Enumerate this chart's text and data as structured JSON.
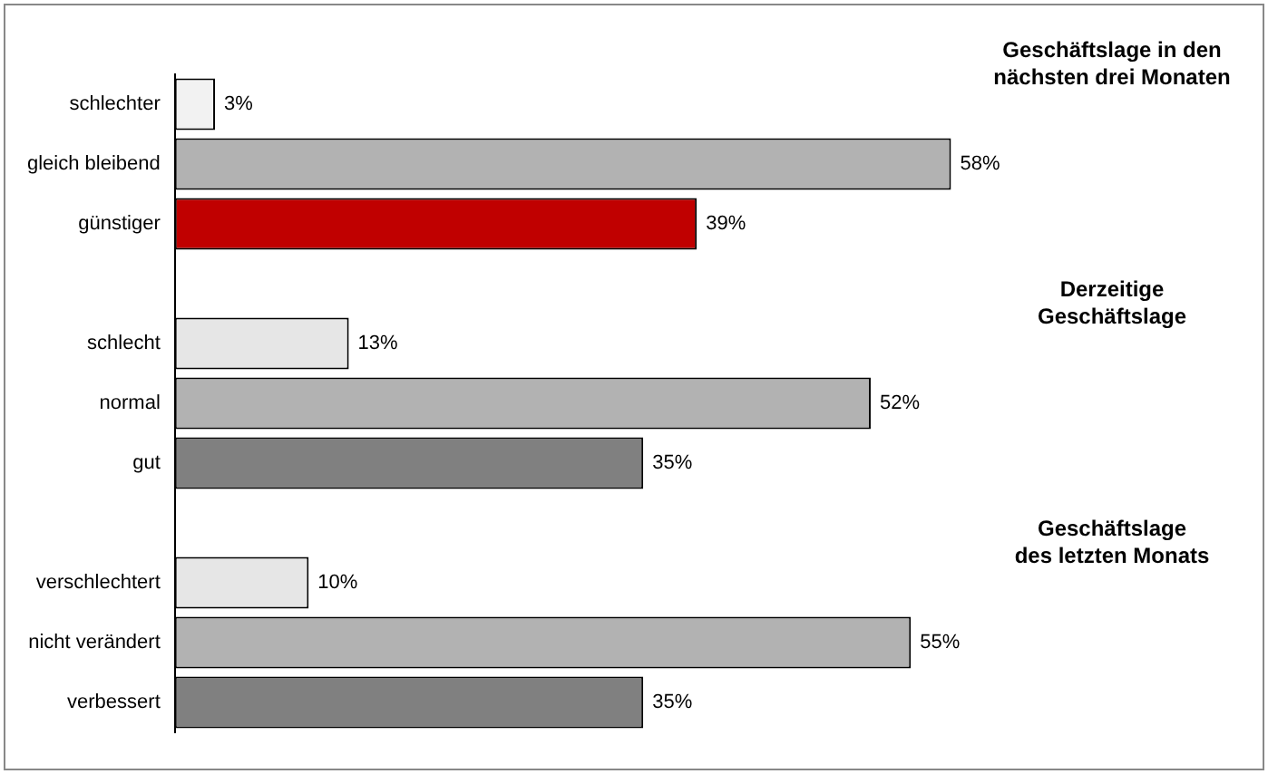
{
  "chart_data": {
    "type": "bar",
    "orientation": "horizontal",
    "categories": [
      "schlechter",
      "gleich bleibend",
      "günstiger",
      null,
      "schlecht",
      "normal",
      "gut",
      null,
      "verschlechtert",
      "nicht verändert",
      "verbessert"
    ],
    "values": [
      3,
      58,
      39,
      null,
      13,
      52,
      35,
      null,
      10,
      55,
      35
    ],
    "colors": [
      "#f2f2f2",
      "#b2b2b2",
      "#c00000",
      "#ffffff",
      "#e6e6e6",
      "#b2b2b2",
      "#808080",
      "#ffffff",
      "#e6e6e6",
      "#b2b2b2",
      "#808080"
    ],
    "value_labels": [
      "3%",
      "58%",
      "39%",
      null,
      "13%",
      "52%",
      "35%",
      null,
      "10%",
      "55%",
      "35%"
    ],
    "annotations": [
      "Geschäftslage in den\nnächsten drei Monaten",
      "Derzeitige\nGeschäftslage",
      "Geschäftslage\ndes letzten Monats"
    ],
    "legend": false
  }
}
